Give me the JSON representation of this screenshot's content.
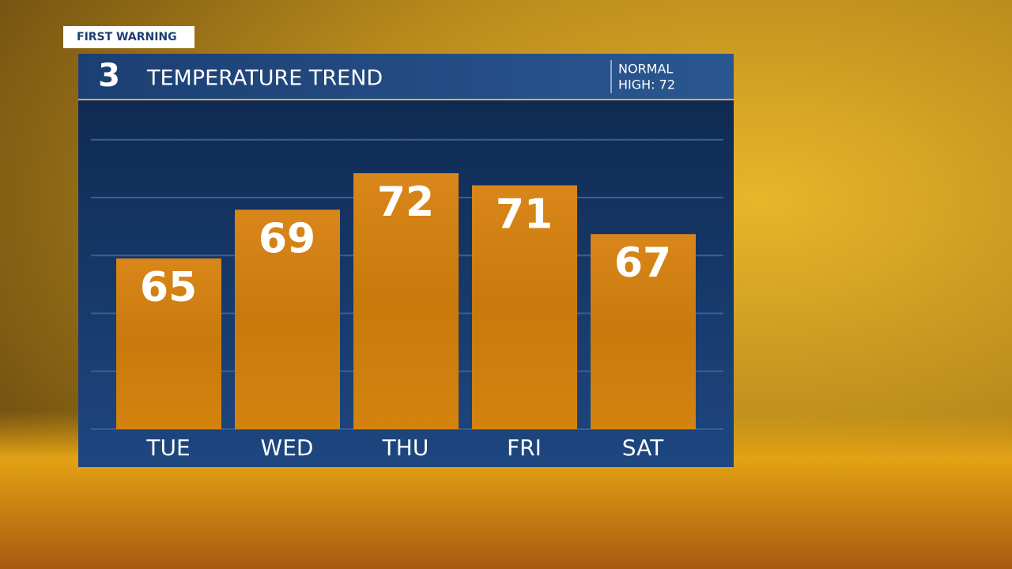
{
  "chart_data": {
    "type": "bar",
    "badge": "FIRST WARNING",
    "logo": "3",
    "title": "TEMPERATURE TREND",
    "note": [
      "NORMAL",
      "HIGH: 72"
    ],
    "categories": [
      "TUE",
      "WED",
      "THU",
      "FRI",
      "SAT"
    ],
    "values": [
      65,
      69,
      72,
      71,
      67
    ],
    "color": "#d4830f",
    "ylim": [
      51,
      77
    ],
    "yticks": [
      51,
      55.75,
      60.5,
      65.25,
      70,
      74.75
    ],
    "grid": true
  }
}
